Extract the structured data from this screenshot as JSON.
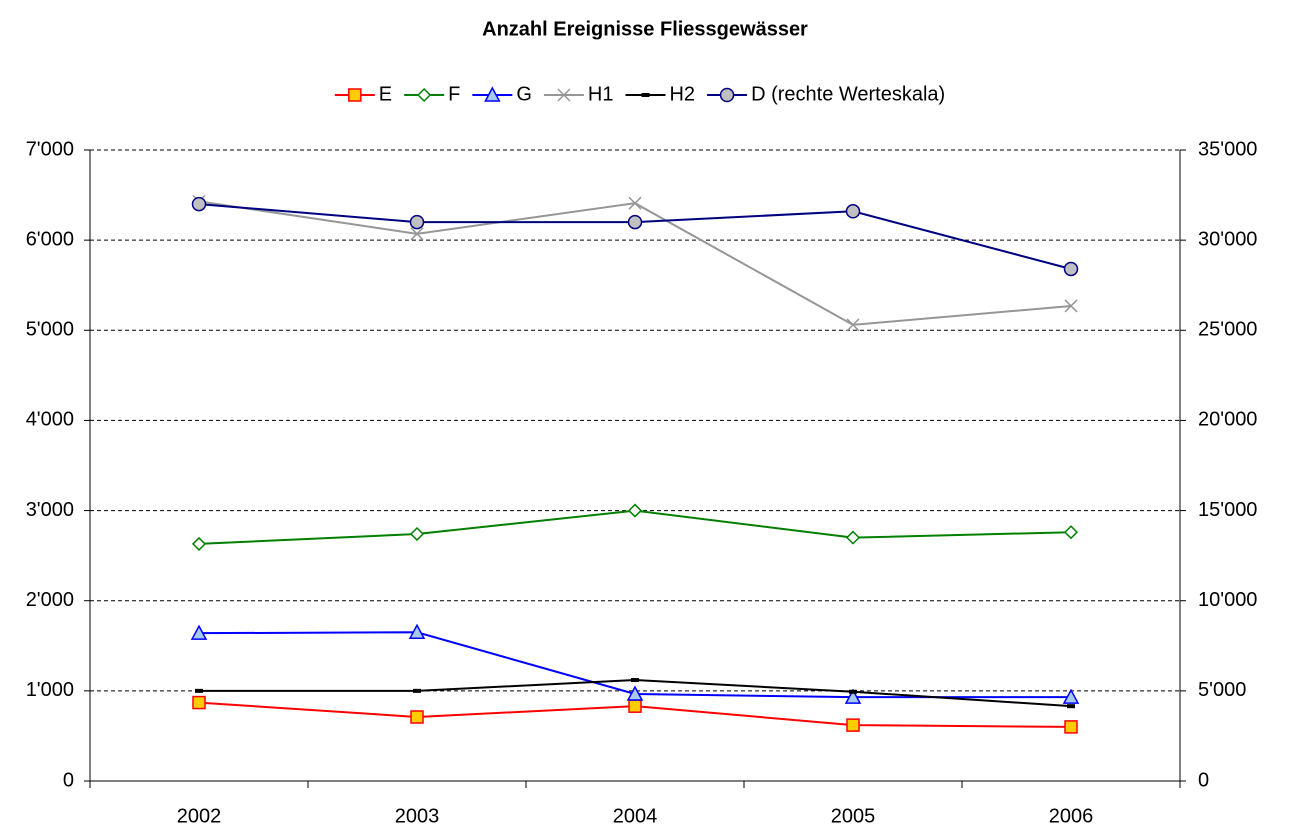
{
  "chart_data": {
    "type": "line",
    "title": "Anzahl Ereignisse Fliessgewässer",
    "categories": [
      "2002",
      "2003",
      "2004",
      "2005",
      "2006"
    ],
    "series": [
      {
        "name": "E",
        "color": "#ff0000",
        "fill": "#ffcc00",
        "marker": "square",
        "values": [
          870,
          710,
          830,
          620,
          600
        ]
      },
      {
        "name": "F",
        "color": "#008000",
        "fill": "#ffffff",
        "marker": "diamond",
        "values": [
          2630,
          2740,
          3000,
          2700,
          2760
        ]
      },
      {
        "name": "G",
        "color": "#0000ff",
        "fill": "#a6caf0",
        "marker": "triangle",
        "values": [
          1640,
          1650,
          965,
          930,
          930
        ]
      },
      {
        "name": "H1",
        "color": "#969696",
        "fill": "none",
        "marker": "x",
        "values": [
          6430,
          6070,
          6410,
          5060,
          5270
        ]
      },
      {
        "name": "H2",
        "color": "#000000",
        "fill": "#000000",
        "marker": "dash",
        "values": [
          1000,
          1000,
          1120,
          990,
          830
        ]
      },
      {
        "name": "D (rechte Werteskala)",
        "color": "#000080",
        "fill": "#c0c0c0",
        "marker": "circle",
        "axis": "y2",
        "values": [
          32000,
          31000,
          31000,
          31600,
          28400
        ]
      }
    ],
    "ylim": [
      0,
      7000
    ],
    "yticks": [
      0,
      {
        "value": 1000,
        "label": "1'000"
      },
      {
        "value": 2000,
        "label": "2'000"
      },
      {
        "value": 3000,
        "label": "3'000"
      },
      {
        "value": 4000,
        "label": "4'000"
      },
      {
        "value": 5000,
        "label": "5'000"
      },
      {
        "value": 6000,
        "label": "6'000"
      },
      {
        "value": 7000,
        "label": "7'000"
      }
    ],
    "y2lim": [
      0,
      35000
    ],
    "y2ticks": [
      0,
      {
        "value": 5000,
        "label": "5'000"
      },
      {
        "value": 10000,
        "label": "10'000"
      },
      {
        "value": 15000,
        "label": "15'000"
      },
      {
        "value": 20000,
        "label": "20'000"
      },
      {
        "value": 25000,
        "label": "25'000"
      },
      {
        "value": 30000,
        "label": "30'000"
      },
      {
        "value": 35000,
        "label": "35'000"
      }
    ],
    "grid": true,
    "legend": "top"
  }
}
